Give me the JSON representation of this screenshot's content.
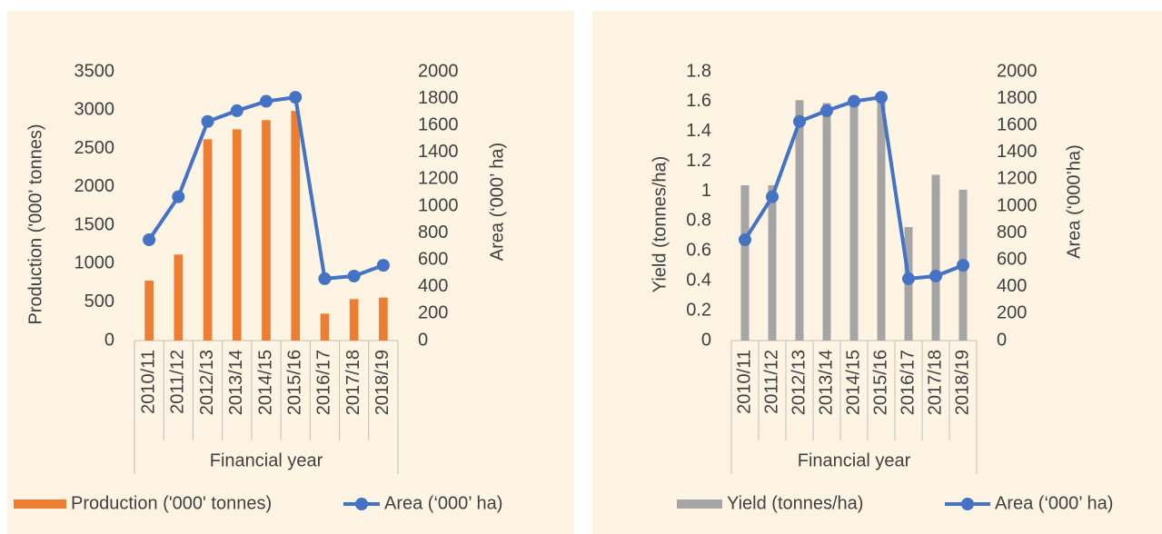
{
  "chart_data": [
    {
      "type": "bar",
      "x_label": "Financial year",
      "y_label": "Production ('000' tonnes)",
      "y2_label": "Area (‘000’ ha)",
      "categories": [
        "2010/11",
        "2011/12",
        "2012/13",
        "2013/14",
        "2014/15",
        "2015/16",
        "2016/17",
        "2017/18",
        "2018/19"
      ],
      "series": [
        {
          "name": "Production ('000' tonnes)",
          "type": "bar",
          "color": "#ed7d31",
          "values": [
            780,
            1120,
            2620,
            2750,
            2870,
            2990,
            350,
            540,
            560
          ]
        },
        {
          "name": "Area (‘000’ ha)",
          "type": "line",
          "axis": "y2",
          "color": "#4472c4",
          "values": [
            750,
            1070,
            1630,
            1710,
            1780,
            1810,
            460,
            480,
            560
          ]
        }
      ],
      "ylim": [
        0,
        3500
      ],
      "yticks": [
        0,
        500,
        1000,
        1500,
        2000,
        2500,
        3000,
        3500
      ],
      "y2lim": [
        0,
        2000
      ],
      "y2ticks": [
        0,
        200,
        400,
        600,
        800,
        1000,
        1200,
        1400,
        1600,
        1800,
        2000
      ],
      "legend": "bottom"
    },
    {
      "type": "bar",
      "x_label": "Financial year",
      "y_label": "Yield (tonnes/ha)",
      "y2_label": "Area (‘000’ha)",
      "categories": [
        "2010/11",
        "2011/12",
        "2012/13",
        "2013/14",
        "2014/15",
        "2015/16",
        "2016/17",
        "2017/18",
        "2018/19"
      ],
      "series": [
        {
          "name": "Yield (tonnes/ha)",
          "type": "bar",
          "color": "#a5a5a5",
          "values": [
            1.04,
            1.04,
            1.61,
            1.59,
            1.62,
            1.63,
            0.76,
            1.11,
            1.01
          ]
        },
        {
          "name": "Area (‘000’ ha)",
          "type": "line",
          "axis": "y2",
          "color": "#4472c4",
          "values": [
            750,
            1070,
            1630,
            1710,
            1780,
            1810,
            460,
            480,
            560
          ]
        }
      ],
      "ylim": [
        0,
        1.8
      ],
      "yticks": [
        0,
        0.2,
        0.4,
        0.6,
        0.8,
        1,
        1.2,
        1.4,
        1.6,
        1.8
      ],
      "y2lim": [
        0,
        2000
      ],
      "y2ticks": [
        0,
        200,
        400,
        600,
        800,
        1000,
        1200,
        1400,
        1600,
        1800,
        2000
      ],
      "legend": "bottom"
    }
  ]
}
